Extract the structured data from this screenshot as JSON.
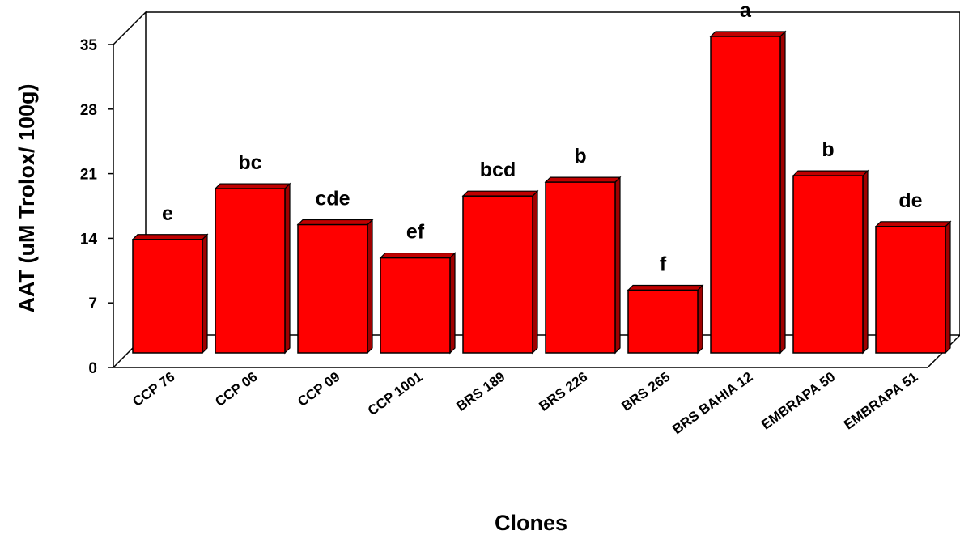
{
  "chart_data": {
    "type": "bar",
    "title": "",
    "xlabel": "Clones",
    "ylabel": "AAT (uM Trolox/ 100g)",
    "ylim": [
      0,
      35
    ],
    "yticks": [
      0,
      7,
      14,
      21,
      28,
      35
    ],
    "grid": false,
    "legend": "none",
    "bar_color": "#ff0000",
    "categories": [
      "CCP 76",
      "CCP 06",
      "CCP 09",
      "CCP 1001",
      "BRS 189",
      "BRS 226",
      "BRS 265",
      "BRS BAHIA 12",
      "EMBRAPA 50",
      "EMBRAPA 51"
    ],
    "values": [
      12.3,
      17.8,
      13.9,
      10.3,
      17.0,
      18.5,
      6.8,
      34.3,
      19.2,
      13.7
    ],
    "data_labels": [
      "e",
      "bc",
      "cde",
      "ef",
      "bcd",
      "b",
      "f",
      "a",
      "b",
      "de"
    ]
  }
}
